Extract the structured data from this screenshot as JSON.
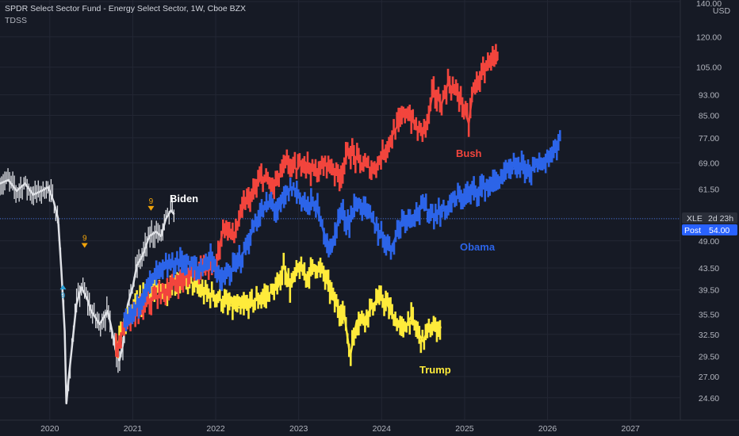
{
  "header": {
    "title": "SPDR Select Sector Fund - Energy Select Sector, 1W, Cboe BZX",
    "indicator": "TDSS"
  },
  "colors": {
    "background": "#161a25",
    "grid": "#232734",
    "bush": "#f2453d",
    "obama": "#2c64e8",
    "trump": "#ffeb3b",
    "price_bars": "#dfe1e6",
    "tdss_up": "#2a9fd6",
    "tdss_down": "#f0a30a",
    "post_badge": "#2962ff"
  },
  "badges": {
    "top_unit_price": "140.00",
    "top_unit_currency": "USD",
    "symbol": "XLE",
    "countdown": "2d 23h",
    "post_label": "Post",
    "post_value": "54.00"
  },
  "tdss_markers": [
    {
      "label": "9",
      "direction": "down"
    },
    {
      "label": "9",
      "direction": "up"
    },
    {
      "label": "9",
      "direction": "down"
    }
  ],
  "chart_data": {
    "type": "line",
    "title": "SPDR Select Sector Fund - Energy Select Sector, 1W, Cboe BZX",
    "x_range": [
      2019.4,
      2027.6
    ],
    "y_range": [
      22.3,
      141
    ],
    "y_scale": "log",
    "y_ticks": [
      140.0,
      120.0,
      105.0,
      93.0,
      85.0,
      77.0,
      69.0,
      61.5,
      54.0,
      49.0,
      43.5,
      39.5,
      35.5,
      32.5,
      29.5,
      27.0,
      24.6
    ],
    "x_ticks": [
      "2020",
      "2021",
      "2022",
      "2023",
      "2024",
      "2025",
      "2026",
      "2027"
    ],
    "x_tick_values": [
      2020,
      2021,
      2022,
      2023,
      2024,
      2025,
      2026,
      2027
    ],
    "last_price": 54.0,
    "grid": true,
    "series": [
      {
        "name": "XLE",
        "x": [
          2019.4,
          2019.5,
          2019.6,
          2019.7,
          2019.8,
          2019.9,
          2019.98,
          2020.05,
          2020.1,
          2020.14,
          2020.18,
          2020.2,
          2020.23,
          2020.27,
          2020.32,
          2020.38,
          2020.45,
          2020.5,
          2020.6,
          2020.7,
          2020.75,
          2020.8,
          2020.84,
          2020.88,
          2020.94,
          2021.0,
          2021.05,
          2021.12,
          2021.2,
          2021.28,
          2021.34,
          2021.4,
          2021.46,
          2021.5
        ],
        "y": [
          63,
          64,
          61,
          63,
          60,
          61,
          62,
          58,
          54,
          43,
          33,
          24,
          27,
          31,
          37,
          40,
          38,
          36,
          34,
          36,
          33,
          30,
          29,
          31,
          37,
          40,
          44,
          46,
          50,
          51,
          50,
          54,
          56,
          55
        ]
      },
      {
        "name": "Bush",
        "x": [
          2020.8,
          2020.9,
          2021.0,
          2021.2,
          2021.45,
          2021.65,
          2021.8,
          2022.0,
          2022.1,
          2022.22,
          2022.35,
          2022.45,
          2022.55,
          2022.7,
          2022.85,
          2022.98,
          2023.05,
          2023.2,
          2023.35,
          2023.5,
          2023.6,
          2023.75,
          2023.9,
          2024.0,
          2024.15,
          2024.3,
          2024.45,
          2024.55,
          2024.62,
          2024.72,
          2024.8,
          2024.95,
          2025.05,
          2025.1,
          2025.2,
          2025.32,
          2025.4
        ],
        "y": [
          30.5,
          33.5,
          35,
          37.5,
          40,
          42,
          43.5,
          44,
          52.5,
          50,
          58,
          60,
          65,
          62,
          69,
          67,
          70,
          66,
          69,
          65,
          73,
          69,
          67,
          71,
          79,
          87,
          79,
          82,
          95,
          89,
          98,
          92,
          82,
          95,
          101,
          110,
          108
        ]
      },
      {
        "name": "Obama",
        "x": [
          2020.9,
          2021.0,
          2021.15,
          2021.3,
          2021.45,
          2021.6,
          2021.8,
          2021.95,
          2022.05,
          2022.2,
          2022.35,
          2022.5,
          2022.65,
          2022.75,
          2022.85,
          2022.92,
          2023.0,
          2023.1,
          2023.2,
          2023.3,
          2023.4,
          2023.5,
          2023.6,
          2023.7,
          2023.82,
          2024.0,
          2024.12,
          2024.25,
          2024.4,
          2024.5,
          2024.62,
          2024.75,
          2024.9,
          2025.05,
          2025.2,
          2025.35,
          2025.5,
          2025.65,
          2025.8,
          2025.95,
          2026.05,
          2026.15
        ],
        "y": [
          33.5,
          35.5,
          39.5,
          42.5,
          44,
          45,
          43,
          46,
          41,
          43,
          47,
          54,
          58,
          56,
          60,
          62,
          60,
          57,
          58,
          51,
          47,
          56,
          53,
          58,
          56,
          50,
          47.5,
          54,
          55,
          57,
          55,
          56,
          59,
          60,
          62,
          63,
          66,
          68,
          67,
          69,
          72,
          77
        ]
      },
      {
        "name": "Trump",
        "x": [
          2020.8,
          2020.9,
          2021.0,
          2021.12,
          2021.25,
          2021.4,
          2021.55,
          2021.7,
          2021.85,
          2022.0,
          2022.15,
          2022.3,
          2022.45,
          2022.6,
          2022.75,
          2022.82,
          2022.9,
          2023.0,
          2023.1,
          2023.2,
          2023.3,
          2023.45,
          2023.55,
          2023.62,
          2023.7,
          2023.8,
          2023.95,
          2024.05,
          2024.15,
          2024.25,
          2024.35,
          2024.45,
          2024.5,
          2024.55,
          2024.65,
          2024.72
        ],
        "y": [
          30.5,
          34,
          36,
          38,
          39,
          39.5,
          41.5,
          41,
          39,
          38.5,
          37,
          36.5,
          37.5,
          38.5,
          40,
          44,
          40,
          43.5,
          42,
          44,
          42.5,
          37,
          35.5,
          29.5,
          34.5,
          35,
          38,
          37.5,
          35,
          33,
          35,
          32.5,
          31.5,
          33,
          33.5,
          33.5
        ]
      }
    ],
    "annotations": [
      "Biden",
      "Bush",
      "Obama",
      "Trump"
    ]
  }
}
